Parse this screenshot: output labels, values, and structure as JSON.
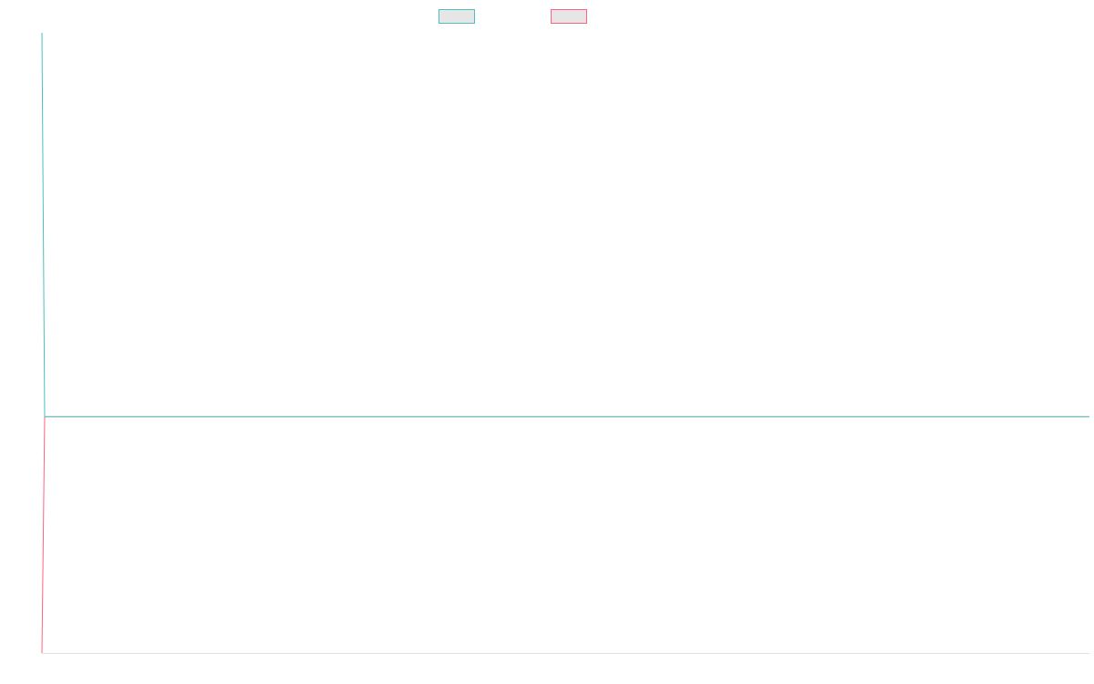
{
  "chart_data": {
    "type": "line",
    "xlim": [
      0,
      100
    ],
    "ylim": [
      0,
      100
    ],
    "series": [
      {
        "color": "#4bc0c0",
        "x": [
          0,
          0.26,
          100
        ],
        "values": [
          100,
          38.1,
          38.1
        ]
      },
      {
        "color": "#ff6384",
        "x": [
          0,
          0.26,
          100
        ],
        "values": [
          0,
          38.1,
          38.1
        ]
      }
    ]
  }
}
